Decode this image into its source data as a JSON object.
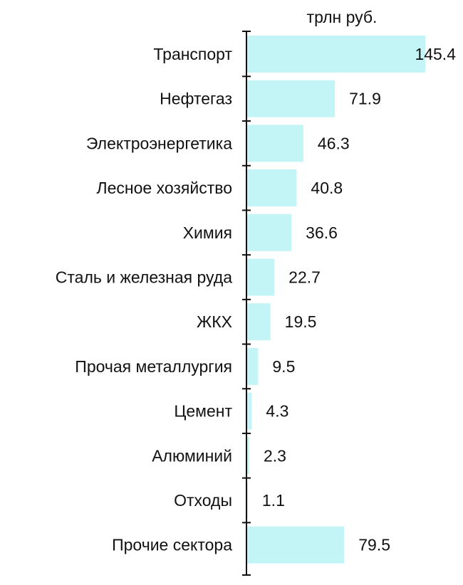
{
  "chart_data": {
    "type": "bar",
    "orientation": "horizontal",
    "unit_label": "трлн руб.",
    "categories": [
      "Транспорт",
      "Нефтегаз",
      "Электроэнергетика",
      "Лесное хозяйство",
      "Химия",
      "Сталь и железная руда",
      "ЖКХ",
      "Прочая металлургия",
      "Цемент",
      "Алюминий",
      "Отходы",
      "Прочие сектора"
    ],
    "values": [
      145.4,
      71.9,
      46.3,
      40.8,
      36.6,
      22.7,
      19.5,
      9.5,
      4.3,
      2.3,
      1.1,
      79.5
    ],
    "value_labels": [
      "145.4",
      "71.9",
      "46.3",
      "40.8",
      "36.6",
      "22.7",
      "19.5",
      "9.5",
      "4.3",
      "2.3",
      "1.1",
      "79.5"
    ],
    "xlim": [
      0,
      145.4
    ],
    "grid": false,
    "legend": "none",
    "colors": {
      "bar": "#c3f5f7",
      "axis": "#111111",
      "text": "#111111"
    }
  }
}
